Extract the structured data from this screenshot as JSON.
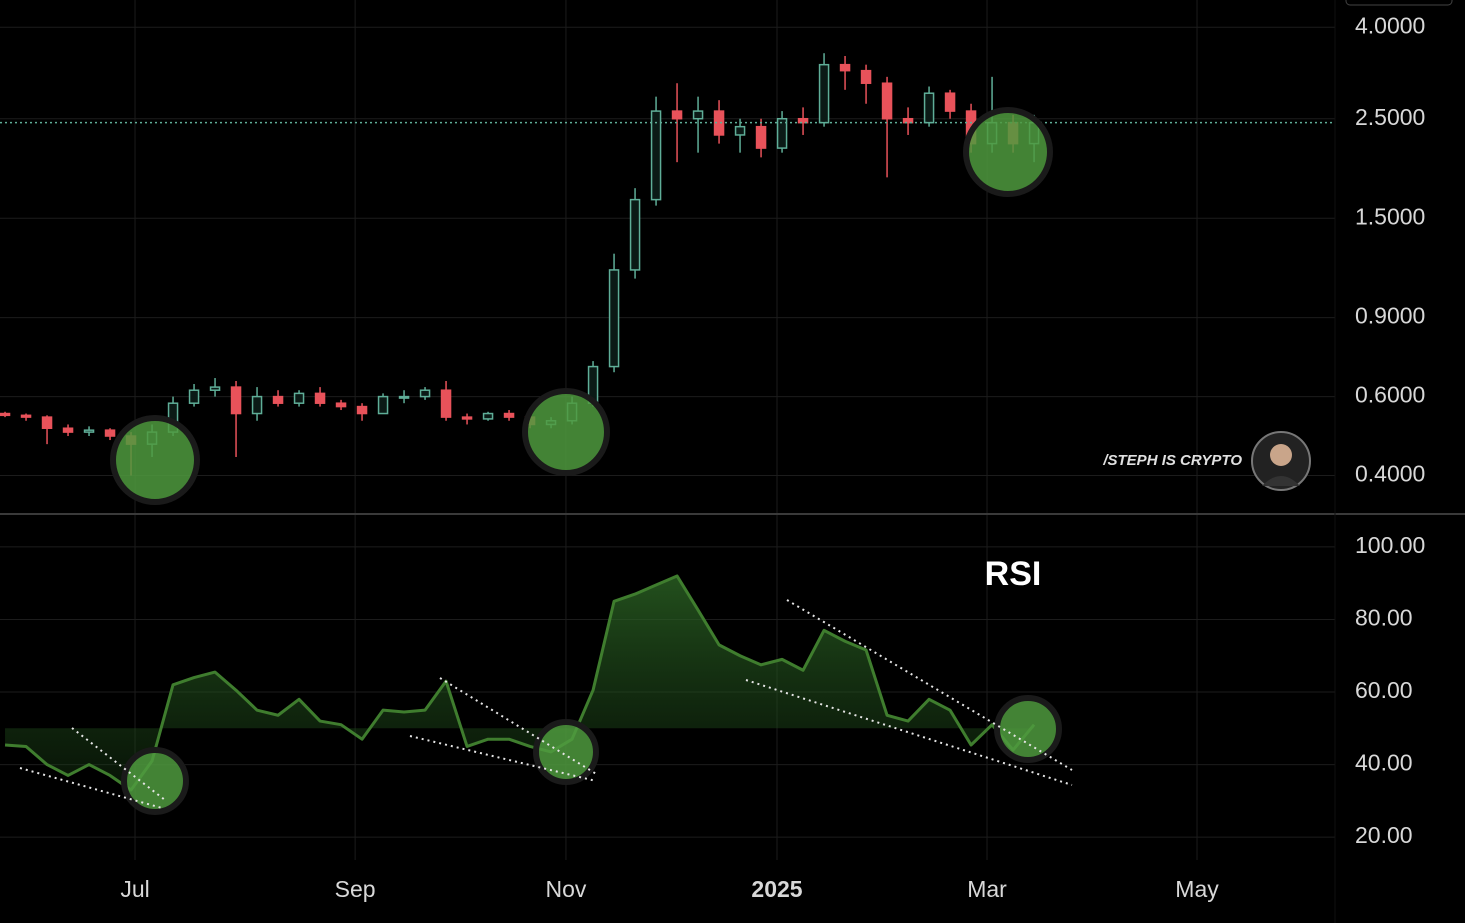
{
  "watermark": "/STEPH IS CRYPTO",
  "chart_data": [
    {
      "type": "candlestick",
      "log_scale": true,
      "grid": true,
      "up_color": "#5fae98",
      "down_color": "#e8525a",
      "xlim": [
        -0.24,
        63.33
      ],
      "ylim": [
        0.33,
        4.6
      ],
      "yticks": [
        {
          "value": 0.4,
          "label": "0.4000"
        },
        {
          "value": 0.6,
          "label": "0.6000"
        },
        {
          "value": 0.9,
          "label": "0.9000"
        },
        {
          "value": 1.5,
          "label": "1.5000"
        },
        {
          "value": 2.5,
          "label": "2.5000"
        },
        {
          "value": 4,
          "label": "4.0000"
        }
      ],
      "x": [
        0,
        1,
        2,
        3,
        4,
        5,
        6,
        7,
        8,
        9,
        10,
        11,
        12,
        13,
        14,
        15,
        16,
        17,
        18,
        19,
        20,
        21,
        22,
        23,
        24,
        25,
        26,
        27,
        28,
        29,
        30,
        31,
        32,
        33,
        34,
        35,
        36,
        37,
        38,
        39,
        40,
        41,
        42,
        43,
        44,
        45,
        46,
        47,
        48,
        49
      ],
      "open": [
        0.55,
        0.545,
        0.54,
        0.51,
        0.5,
        0.505,
        0.49,
        0.47,
        0.5,
        0.58,
        0.62,
        0.63,
        0.55,
        0.6,
        0.58,
        0.61,
        0.58,
        0.57,
        0.55,
        0.6,
        0.6,
        0.62,
        0.54,
        0.535,
        0.55,
        0.54,
        0.52,
        0.53,
        0.58,
        0.7,
        1.15,
        1.65,
        2.6,
        2.5,
        2.6,
        2.3,
        2.4,
        2.15,
        2.5,
        2.45,
        3.3,
        3.2,
        3.0,
        2.5,
        2.45,
        2.85,
        2.6,
        2.2,
        2.45,
        2.2
      ],
      "high": [
        0.555,
        0.55,
        0.545,
        0.52,
        0.515,
        0.51,
        0.5,
        0.52,
        0.6,
        0.64,
        0.66,
        0.65,
        0.63,
        0.62,
        0.62,
        0.63,
        0.59,
        0.58,
        0.61,
        0.62,
        0.63,
        0.65,
        0.55,
        0.555,
        0.56,
        0.55,
        0.54,
        0.6,
        0.72,
        1.25,
        1.75,
        2.8,
        3.0,
        2.8,
        2.75,
        2.5,
        2.5,
        2.6,
        2.65,
        3.5,
        3.45,
        3.3,
        3.1,
        2.65,
        2.95,
        2.9,
        2.7,
        3.1,
        2.55,
        2.55
      ],
      "low": [
        0.54,
        0.53,
        0.47,
        0.49,
        0.49,
        0.48,
        0.4,
        0.44,
        0.49,
        0.57,
        0.6,
        0.44,
        0.53,
        0.57,
        0.57,
        0.57,
        0.56,
        0.53,
        0.55,
        0.58,
        0.59,
        0.53,
        0.52,
        0.53,
        0.53,
        0.51,
        0.51,
        0.52,
        0.57,
        0.68,
        1.1,
        1.6,
        2.0,
        2.1,
        2.2,
        2.1,
        2.05,
        2.1,
        2.3,
        2.4,
        2.9,
        2.7,
        1.85,
        2.3,
        2.4,
        2.5,
        2.1,
        2.1,
        2.1,
        2.0
      ],
      "close": [
        0.545,
        0.54,
        0.51,
        0.5,
        0.505,
        0.49,
        0.47,
        0.5,
        0.58,
        0.62,
        0.63,
        0.55,
        0.6,
        0.58,
        0.61,
        0.58,
        0.57,
        0.55,
        0.6,
        0.6,
        0.62,
        0.54,
        0.535,
        0.55,
        0.54,
        0.52,
        0.53,
        0.58,
        0.7,
        1.15,
        1.65,
        2.6,
        2.5,
        2.6,
        2.3,
        2.4,
        2.15,
        2.5,
        2.45,
        3.3,
        3.2,
        3.0,
        2.5,
        2.45,
        2.85,
        2.6,
        2.2,
        2.45,
        2.2,
        2.45
      ]
    },
    {
      "type": "line",
      "title": "RSI",
      "grid": true,
      "color": "#3f7d2e",
      "xlim": [
        -0.24,
        63.33
      ],
      "xticks": [
        {
          "value": 6.19,
          "label": "Jul"
        },
        {
          "value": 16.67,
          "label": "Sep"
        },
        {
          "value": 26.71,
          "label": "Nov"
        },
        {
          "value": 36.76,
          "label": "2025"
        },
        {
          "value": 46.76,
          "label": "Mar"
        },
        {
          "value": 56.76,
          "label": "May"
        }
      ],
      "ylim": [
        13.7,
        108.8
      ],
      "yticks": [
        {
          "value": 20,
          "label": "20.00"
        },
        {
          "value": 40,
          "label": "40.00"
        },
        {
          "value": 60,
          "label": "60.00"
        },
        {
          "value": 80,
          "label": "80.00"
        },
        {
          "value": 100,
          "label": "100.00"
        }
      ],
      "baseline": 50,
      "x": [
        0,
        1,
        2,
        3,
        4,
        5,
        6,
        7,
        8,
        9,
        10,
        11,
        12,
        13,
        14,
        15,
        16,
        17,
        18,
        19,
        20,
        21,
        22,
        23,
        24,
        25,
        26,
        27,
        28,
        29,
        30,
        31,
        32,
        33,
        34,
        35,
        36,
        37,
        38,
        39,
        40,
        41,
        42,
        43,
        44,
        45,
        46,
        47,
        48,
        49
      ],
      "values": [
        45.4,
        45,
        40,
        37,
        40,
        37,
        33,
        41,
        62,
        64,
        65.5,
        60.5,
        55,
        53.6,
        58,
        52,
        51,
        47,
        55,
        54.5,
        55,
        63,
        45,
        47,
        47,
        45,
        43.5,
        47,
        60.5,
        85,
        87,
        89.5,
        92,
        82.6,
        73,
        70,
        67.5,
        69,
        66,
        77,
        74,
        71.6,
        53.6,
        52,
        58,
        55,
        45.4,
        51,
        44,
        51
      ]
    }
  ]
}
